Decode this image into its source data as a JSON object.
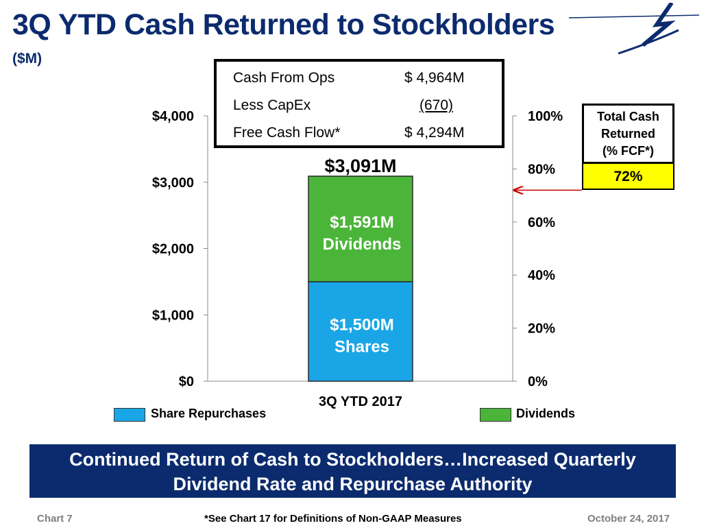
{
  "header": {
    "title": "3Q YTD Cash Returned to Stockholders",
    "subtitle": "($M)"
  },
  "fcf_table": {
    "rows": [
      {
        "label": "Cash From Ops",
        "value": "$ 4,964M"
      },
      {
        "label": "Less CapEx",
        "value": "(670)"
      },
      {
        "label": "Free Cash Flow*",
        "value": "$ 4,294M"
      }
    ]
  },
  "total_cash_returned": {
    "label_line1": "Total Cash",
    "label_line2": "Returned",
    "label_line3": "(% FCF*)",
    "value": "72%",
    "percent": 72
  },
  "chart_data": {
    "type": "bar",
    "stacked": true,
    "categories": [
      "3Q YTD 2017"
    ],
    "series": [
      {
        "name": "Share Repurchases",
        "values": [
          1500
        ],
        "label_line1": "$1,500M",
        "label_line2": "Shares",
        "color": "#1aa6e6"
      },
      {
        "name": "Dividends",
        "values": [
          1591
        ],
        "label_line1": "$1,591M",
        "label_line2": "Dividends",
        "color": "#4bb53a"
      }
    ],
    "total_label": "$3,091M",
    "y_left_ticks": [
      "$0",
      "$1,000",
      "$2,000",
      "$3,000",
      "$4,000"
    ],
    "ylim_left": [
      0,
      4000
    ],
    "y_right_ticks": [
      "0%",
      "20%",
      "40%",
      "60%",
      "80%",
      "100%"
    ],
    "ylim_right": [
      0,
      100
    ],
    "grid": false,
    "legend_position": "bottom"
  },
  "banner": {
    "line1": "Continued Return of Cash to Stockholders…Increased Quarterly",
    "line2": "Dividend Rate and Repurchase Authority"
  },
  "footer": {
    "left": "Chart 7",
    "center": "*See Chart 17 for Definitions of Non-GAAP Measures",
    "right": "October 24, 2017"
  },
  "colors": {
    "title": "#0c2b6e",
    "banner": "#0c2b6e",
    "highlight": "#ffff00",
    "arrow": "#cc0000"
  }
}
